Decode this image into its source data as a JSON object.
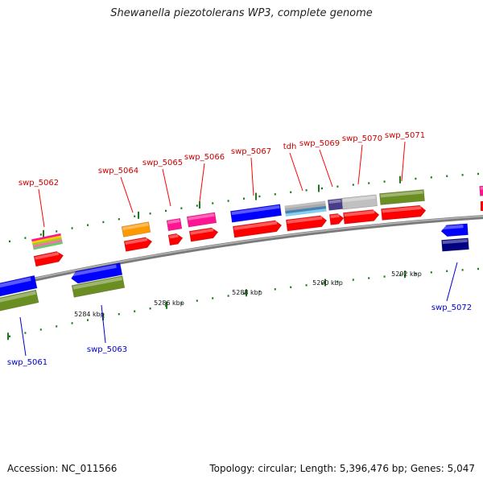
{
  "title": "Shewanella piezotolerans WP3, complete genome",
  "footer": {
    "accession": "Accession: NC_011566",
    "summary": "Topology: circular; Length: 5,396,476 bp; Genes: 5,047"
  },
  "colors": {
    "forward_label": "#cc0000",
    "reverse_label": "#0000cc",
    "backbone": "#8a8a8a",
    "tick": "#1f7a1f",
    "cds": "#ff0000",
    "blue": "#0000ff",
    "olive": "#6b8e23",
    "orange": "#ff9900",
    "magenta": "#ff1493",
    "silver": "#c0c0c0",
    "steelblue": "#4682b4",
    "slate": "#483d8b",
    "navy": "#000080"
  },
  "scale_labels": [
    "5284 kbp",
    "5286 kbp",
    "5288 kbp",
    "5290 kbp",
    "5292 kbp"
  ],
  "genes_top": [
    {
      "name": "swp_5062"
    },
    {
      "name": "swp_5064"
    },
    {
      "name": "swp_5065"
    },
    {
      "name": "swp_5066"
    },
    {
      "name": "swp_5067"
    },
    {
      "name": "tdh"
    },
    {
      "name": "swp_5069"
    },
    {
      "name": "swp_5070"
    },
    {
      "name": "swp_5071"
    }
  ],
  "genes_bottom": [
    {
      "name": "swp_5061"
    },
    {
      "name": "swp_5063"
    },
    {
      "name": "swp_5072"
    }
  ]
}
